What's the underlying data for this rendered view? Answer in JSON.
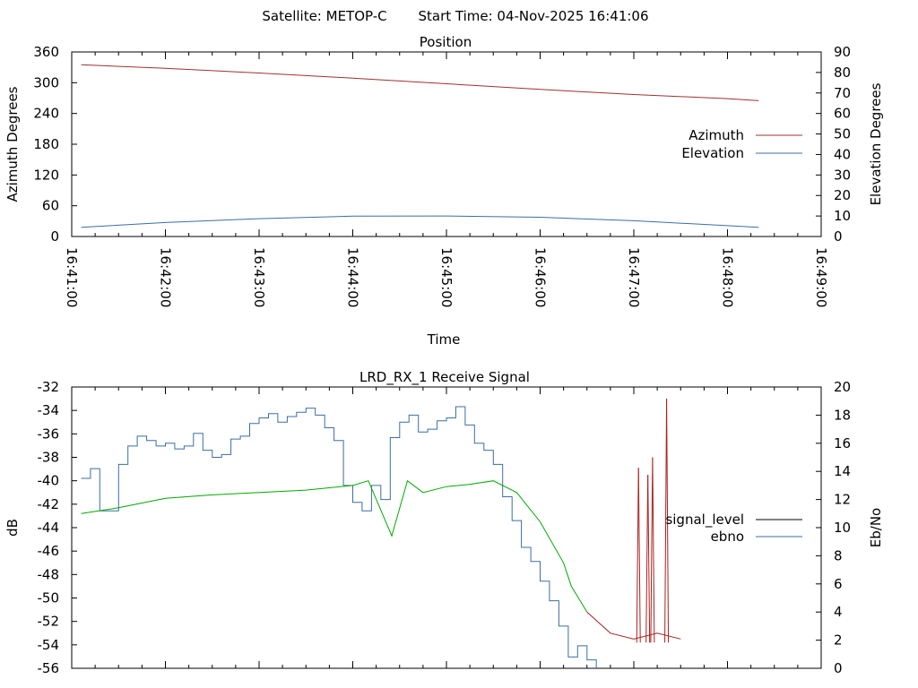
{
  "header": {
    "satellite": "Satellite: METOP-C",
    "start_time": "Start Time: 04-Nov-2025 16:41:06"
  },
  "chart_data": [
    {
      "type": "line",
      "title": "Position",
      "xlabel": "Time",
      "ylabel": "Azimuth Degrees",
      "y2label": "Elevation Degrees",
      "xlim": [
        "16:41:00",
        "16:49:00"
      ],
      "ylim": [
        0,
        360
      ],
      "y2lim": [
        0,
        90
      ],
      "xticks": [
        "16:41:00",
        "16:42:00",
        "16:43:00",
        "16:44:00",
        "16:45:00",
        "16:46:00",
        "16:47:00",
        "16:48:00",
        "16:49:00"
      ],
      "yticks": [
        "0",
        "60",
        "120",
        "180",
        "240",
        "300",
        "360"
      ],
      "y2ticks": [
        "0",
        "10",
        "20",
        "30",
        "40",
        "50",
        "60",
        "70",
        "80",
        "90"
      ],
      "legend_position": "right",
      "series": [
        {
          "name": "Azimuth",
          "axis": "y",
          "color": "#a03030",
          "x": [
            "16:41:06",
            "16:42:00",
            "16:43:00",
            "16:44:00",
            "16:45:00",
            "16:46:00",
            "16:47:00",
            "16:48:00",
            "16:48:20"
          ],
          "values": [
            335,
            328,
            319,
            309,
            298,
            287,
            277,
            269,
            265
          ]
        },
        {
          "name": "Elevation",
          "axis": "y2",
          "color": "#3a6ea5",
          "x": [
            "16:41:06",
            "16:42:00",
            "16:43:00",
            "16:44:00",
            "16:45:00",
            "16:46:00",
            "16:47:00",
            "16:48:00",
            "16:48:20"
          ],
          "values": [
            4.5,
            6.8,
            8.7,
            9.9,
            10.0,
            9.4,
            7.7,
            5.3,
            4.5
          ]
        }
      ]
    },
    {
      "type": "line",
      "title": "LRD_RX_1 Receive Signal",
      "xlabel": "",
      "ylabel": "dB",
      "y2label": "Eb/No",
      "xlim": [
        "16:41:00",
        "16:49:00"
      ],
      "ylim": [
        -56,
        -32
      ],
      "y2lim": [
        0,
        20
      ],
      "yticks": [
        "-56",
        "-54",
        "-52",
        "-50",
        "-48",
        "-46",
        "-44",
        "-42",
        "-40",
        "-38",
        "-36",
        "-34",
        "-32"
      ],
      "y2ticks": [
        "0",
        "2",
        "4",
        "6",
        "8",
        "10",
        "12",
        "14",
        "16",
        "18",
        "20"
      ],
      "legend_position": "right",
      "series": [
        {
          "name": "signal_level",
          "axis": "y",
          "color": "#00aa00",
          "x_seconds": [
            6,
            30,
            60,
            90,
            120,
            150,
            180,
            190,
            198,
            205,
            215,
            225,
            240,
            255,
            270,
            285,
            300,
            315,
            320,
            330,
            345,
            360,
            375,
            390
          ],
          "values": [
            -42.8,
            -42.3,
            -41.5,
            -41.2,
            -41.0,
            -40.8,
            -40.4,
            -40.0,
            -42.5,
            -44.7,
            -40.0,
            -41.0,
            -40.5,
            -40.3,
            -40.0,
            -41.0,
            -43.5,
            -47.0,
            -49.0,
            -51.2,
            -53.0,
            -53.5,
            -53.0,
            -53.5
          ],
          "level_color_below_-52": "#aa2020",
          "spikes": [
            {
              "t": 363,
              "value": -38.9
            },
            {
              "t": 369,
              "value": -39.5
            },
            {
              "t": 372,
              "value": -38.0
            },
            {
              "t": 381,
              "value": -33.0
            }
          ]
        },
        {
          "name": "ebno",
          "axis": "y2",
          "color": "#3a6ea5",
          "x_seconds": [
            6,
            12,
            18,
            30,
            36,
            42,
            48,
            54,
            60,
            66,
            72,
            78,
            84,
            90,
            96,
            102,
            108,
            114,
            120,
            126,
            132,
            138,
            144,
            150,
            156,
            162,
            168,
            174,
            180,
            186,
            192,
            198,
            204,
            210,
            216,
            222,
            228,
            234,
            240,
            246,
            252,
            258,
            264,
            270,
            276,
            282,
            288,
            294,
            300,
            306,
            312,
            318,
            324,
            330,
            336
          ],
          "values": [
            13.5,
            14.2,
            11.2,
            14.5,
            15.8,
            16.5,
            16.2,
            15.8,
            16.0,
            15.6,
            15.8,
            16.7,
            15.5,
            15.0,
            15.2,
            16.3,
            16.5,
            17.4,
            17.8,
            18.1,
            17.5,
            17.9,
            18.2,
            18.5,
            18.0,
            17.1,
            16.2,
            13.0,
            11.8,
            11.2,
            13.0,
            12.0,
            16.4,
            17.5,
            18.0,
            16.8,
            17.0,
            17.6,
            17.8,
            18.6,
            17.3,
            16.0,
            15.5,
            14.5,
            12.2,
            10.5,
            8.6,
            7.6,
            6.2,
            4.8,
            3.0,
            0.8,
            1.6,
            0.6,
            0.0
          ]
        }
      ]
    }
  ]
}
